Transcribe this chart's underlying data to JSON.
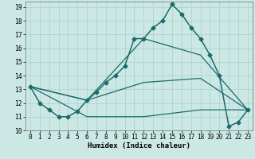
{
  "bg_color": "#cce8e4",
  "grid_color": "#aacfcc",
  "line_color": "#1a6b6b",
  "xlabel": "Humidex (Indice chaleur)",
  "xlim": [
    -0.5,
    23.5
  ],
  "ylim": [
    10,
    19.4
  ],
  "yticks": [
    10,
    11,
    12,
    13,
    14,
    15,
    16,
    17,
    18,
    19
  ],
  "xticks": [
    0,
    1,
    2,
    3,
    4,
    5,
    6,
    7,
    8,
    9,
    10,
    11,
    12,
    13,
    14,
    15,
    16,
    17,
    18,
    19,
    20,
    21,
    22,
    23
  ],
  "series": [
    {
      "x": [
        0,
        1,
        2,
        3,
        4,
        5,
        6,
        7,
        8,
        9,
        10,
        11,
        12,
        13,
        14,
        15,
        16,
        17,
        18,
        19,
        20,
        21,
        22,
        23
      ],
      "y": [
        13.2,
        12.0,
        11.5,
        11.0,
        11.0,
        11.4,
        12.2,
        12.8,
        13.5,
        14.0,
        14.7,
        16.7,
        16.7,
        17.5,
        18.0,
        19.2,
        18.5,
        17.5,
        16.7,
        15.5,
        14.0,
        10.3,
        10.6,
        11.5
      ],
      "marker": "D",
      "markersize": 2.5,
      "linewidth": 1.1,
      "zorder": 4
    },
    {
      "x": [
        0,
        6,
        12,
        18,
        23
      ],
      "y": [
        13.2,
        12.2,
        16.7,
        15.5,
        11.5
      ],
      "marker": null,
      "linewidth": 0.9,
      "zorder": 3
    },
    {
      "x": [
        0,
        6,
        12,
        18,
        23
      ],
      "y": [
        13.2,
        12.2,
        13.5,
        13.8,
        11.5
      ],
      "marker": null,
      "linewidth": 0.9,
      "zorder": 3
    },
    {
      "x": [
        0,
        6,
        12,
        18,
        23
      ],
      "y": [
        13.2,
        11.0,
        11.0,
        11.5,
        11.5
      ],
      "marker": null,
      "linewidth": 0.9,
      "zorder": 3
    }
  ],
  "tick_labelsize": 5.5,
  "xlabel_fontsize": 6.5,
  "xlabel_fontweight": "bold"
}
